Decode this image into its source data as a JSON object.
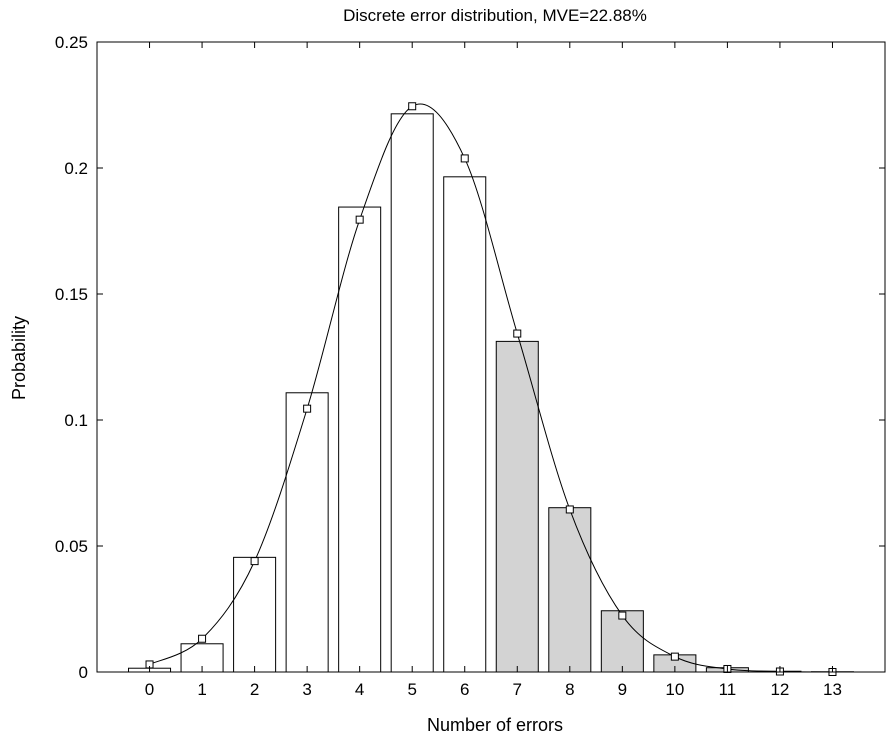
{
  "chart_data": {
    "type": "bar",
    "title": "Discrete error distribution, MVE=22.88%",
    "xlabel": "Number of errors",
    "ylabel": "Probability",
    "categories": [
      "0",
      "1",
      "2",
      "3",
      "4",
      "5",
      "6",
      "7",
      "8",
      "9",
      "10",
      "11",
      "12",
      "13"
    ],
    "x": [
      0,
      1,
      2,
      3,
      4,
      5,
      6,
      7,
      8,
      9,
      10,
      11,
      12,
      13
    ],
    "xlim": [
      -1,
      14
    ],
    "ylim": [
      0,
      0.25
    ],
    "yticks": [
      "0",
      "0.05",
      "0.1",
      "0.15",
      "0.2",
      "0.25"
    ],
    "ytick_values": [
      0,
      0.05,
      0.1,
      0.15,
      0.2,
      0.25
    ],
    "series": [
      {
        "kind": "bar",
        "values": [
          0.0015,
          0.0112,
          0.0455,
          0.1108,
          0.1845,
          0.2215,
          0.1965,
          0.1312,
          0.0652,
          0.0243,
          0.0068,
          0.0017,
          0.0003,
          0.0001
        ],
        "shaded_from_index": 7,
        "fill": "#ffffff",
        "shaded_fill": "#d3d3d3"
      },
      {
        "kind": "line-markers",
        "values": [
          0.003,
          0.0132,
          0.044,
          0.1045,
          0.1795,
          0.2245,
          0.2038,
          0.1343,
          0.0645,
          0.0224,
          0.0061,
          0.0012,
          0.0002,
          0.0
        ],
        "marker": "square"
      }
    ],
    "grid": false,
    "legend": "none",
    "colors": {
      "axis": "#000000",
      "bar_stroke": "#000000",
      "curve": "#000000"
    }
  }
}
